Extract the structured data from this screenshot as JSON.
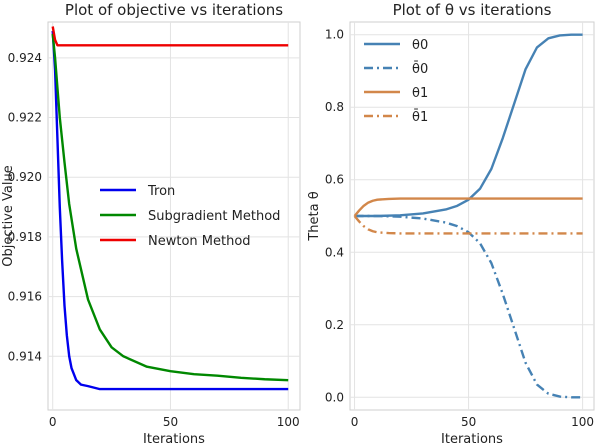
{
  "chart_data": [
    {
      "type": "line",
      "title": "Plot of objective vs iterations",
      "xlabel": "Iterations",
      "ylabel": "Objective Value",
      "xlim": [
        -2,
        105
      ],
      "ylim": [
        0.9122,
        0.9252
      ],
      "xticks": [
        0,
        50,
        100
      ],
      "yticks": [
        0.914,
        0.916,
        0.918,
        0.92,
        0.922,
        0.924
      ],
      "ytick_labels": [
        "0.914",
        "0.916",
        "0.918",
        "0.920",
        "0.922",
        "0.924"
      ],
      "grid": true,
      "legend_position": "center",
      "series": [
        {
          "name": "Tron",
          "color": "#0000ee",
          "style": "solid",
          "x": [
            0,
            1,
            2,
            3,
            4,
            5,
            6,
            7,
            8,
            10,
            12,
            15,
            20,
            30,
            50,
            100
          ],
          "y": [
            0.9249,
            0.9236,
            0.9213,
            0.919,
            0.9172,
            0.9157,
            0.9147,
            0.914,
            0.9136,
            0.9132,
            0.91305,
            0.913,
            0.9129,
            0.9129,
            0.9129,
            0.9129
          ]
        },
        {
          "name": "Subgradient Method",
          "color": "#008800",
          "style": "solid",
          "x": [
            0,
            1,
            2,
            3,
            5,
            7,
            10,
            15,
            20,
            25,
            30,
            40,
            50,
            60,
            70,
            80,
            90,
            100
          ],
          "y": [
            0.9248,
            0.924,
            0.923,
            0.922,
            0.9205,
            0.9191,
            0.9176,
            0.9159,
            0.9149,
            0.9143,
            0.914,
            0.91365,
            0.9135,
            0.9134,
            0.91335,
            0.91328,
            0.91323,
            0.9132
          ]
        },
        {
          "name": "Newton Method",
          "color": "#ee0000",
          "style": "solid",
          "x": [
            0,
            1,
            2,
            4,
            10,
            50,
            100
          ],
          "y": [
            0.92505,
            0.9246,
            0.92442,
            0.92442,
            0.92442,
            0.92442,
            0.92442
          ]
        }
      ]
    },
    {
      "type": "line",
      "title": "Plot of θ vs iterations",
      "xlabel": "Iterations",
      "ylabel": "Theta θ",
      "xlim": [
        -2,
        105
      ],
      "ylim": [
        -0.035,
        1.035
      ],
      "xticks": [
        0,
        50,
        100
      ],
      "yticks": [
        0.0,
        0.2,
        0.4,
        0.6,
        0.8,
        1.0
      ],
      "ytick_labels": [
        "0.0",
        "0.2",
        "0.4",
        "0.6",
        "0.8",
        "1.0"
      ],
      "grid": true,
      "legend_position": "top-left",
      "series": [
        {
          "name": "θ0",
          "color": "#4682b4",
          "style": "solid",
          "x": [
            0,
            10,
            20,
            30,
            40,
            45,
            50,
            55,
            60,
            65,
            70,
            75,
            80,
            85,
            90,
            95,
            100
          ],
          "y": [
            0.5,
            0.5,
            0.502,
            0.507,
            0.518,
            0.528,
            0.545,
            0.575,
            0.63,
            0.715,
            0.81,
            0.905,
            0.965,
            0.99,
            0.998,
            1.0,
            1.0
          ]
        },
        {
          "name": "θ̄0",
          "color": "#4682b4",
          "style": "dashdot",
          "x": [
            0,
            10,
            20,
            30,
            40,
            45,
            50,
            55,
            60,
            65,
            70,
            75,
            80,
            85,
            90,
            95,
            100
          ],
          "y": [
            0.5,
            0.5,
            0.498,
            0.493,
            0.482,
            0.472,
            0.455,
            0.425,
            0.37,
            0.285,
            0.19,
            0.095,
            0.035,
            0.01,
            0.002,
            0.0,
            0.0
          ]
        },
        {
          "name": "θ1",
          "color": "#d2874a",
          "style": "solid",
          "x": [
            0,
            2,
            4,
            6,
            8,
            10,
            15,
            20,
            30,
            50,
            100
          ],
          "y": [
            0.5,
            0.515,
            0.528,
            0.537,
            0.542,
            0.545,
            0.547,
            0.548,
            0.548,
            0.548,
            0.548
          ]
        },
        {
          "name": "θ̄1",
          "color": "#d2874a",
          "style": "dashdot",
          "x": [
            0,
            2,
            4,
            6,
            8,
            10,
            15,
            20,
            30,
            50,
            100
          ],
          "y": [
            0.5,
            0.485,
            0.472,
            0.463,
            0.458,
            0.455,
            0.453,
            0.452,
            0.452,
            0.452,
            0.452
          ]
        }
      ]
    }
  ]
}
